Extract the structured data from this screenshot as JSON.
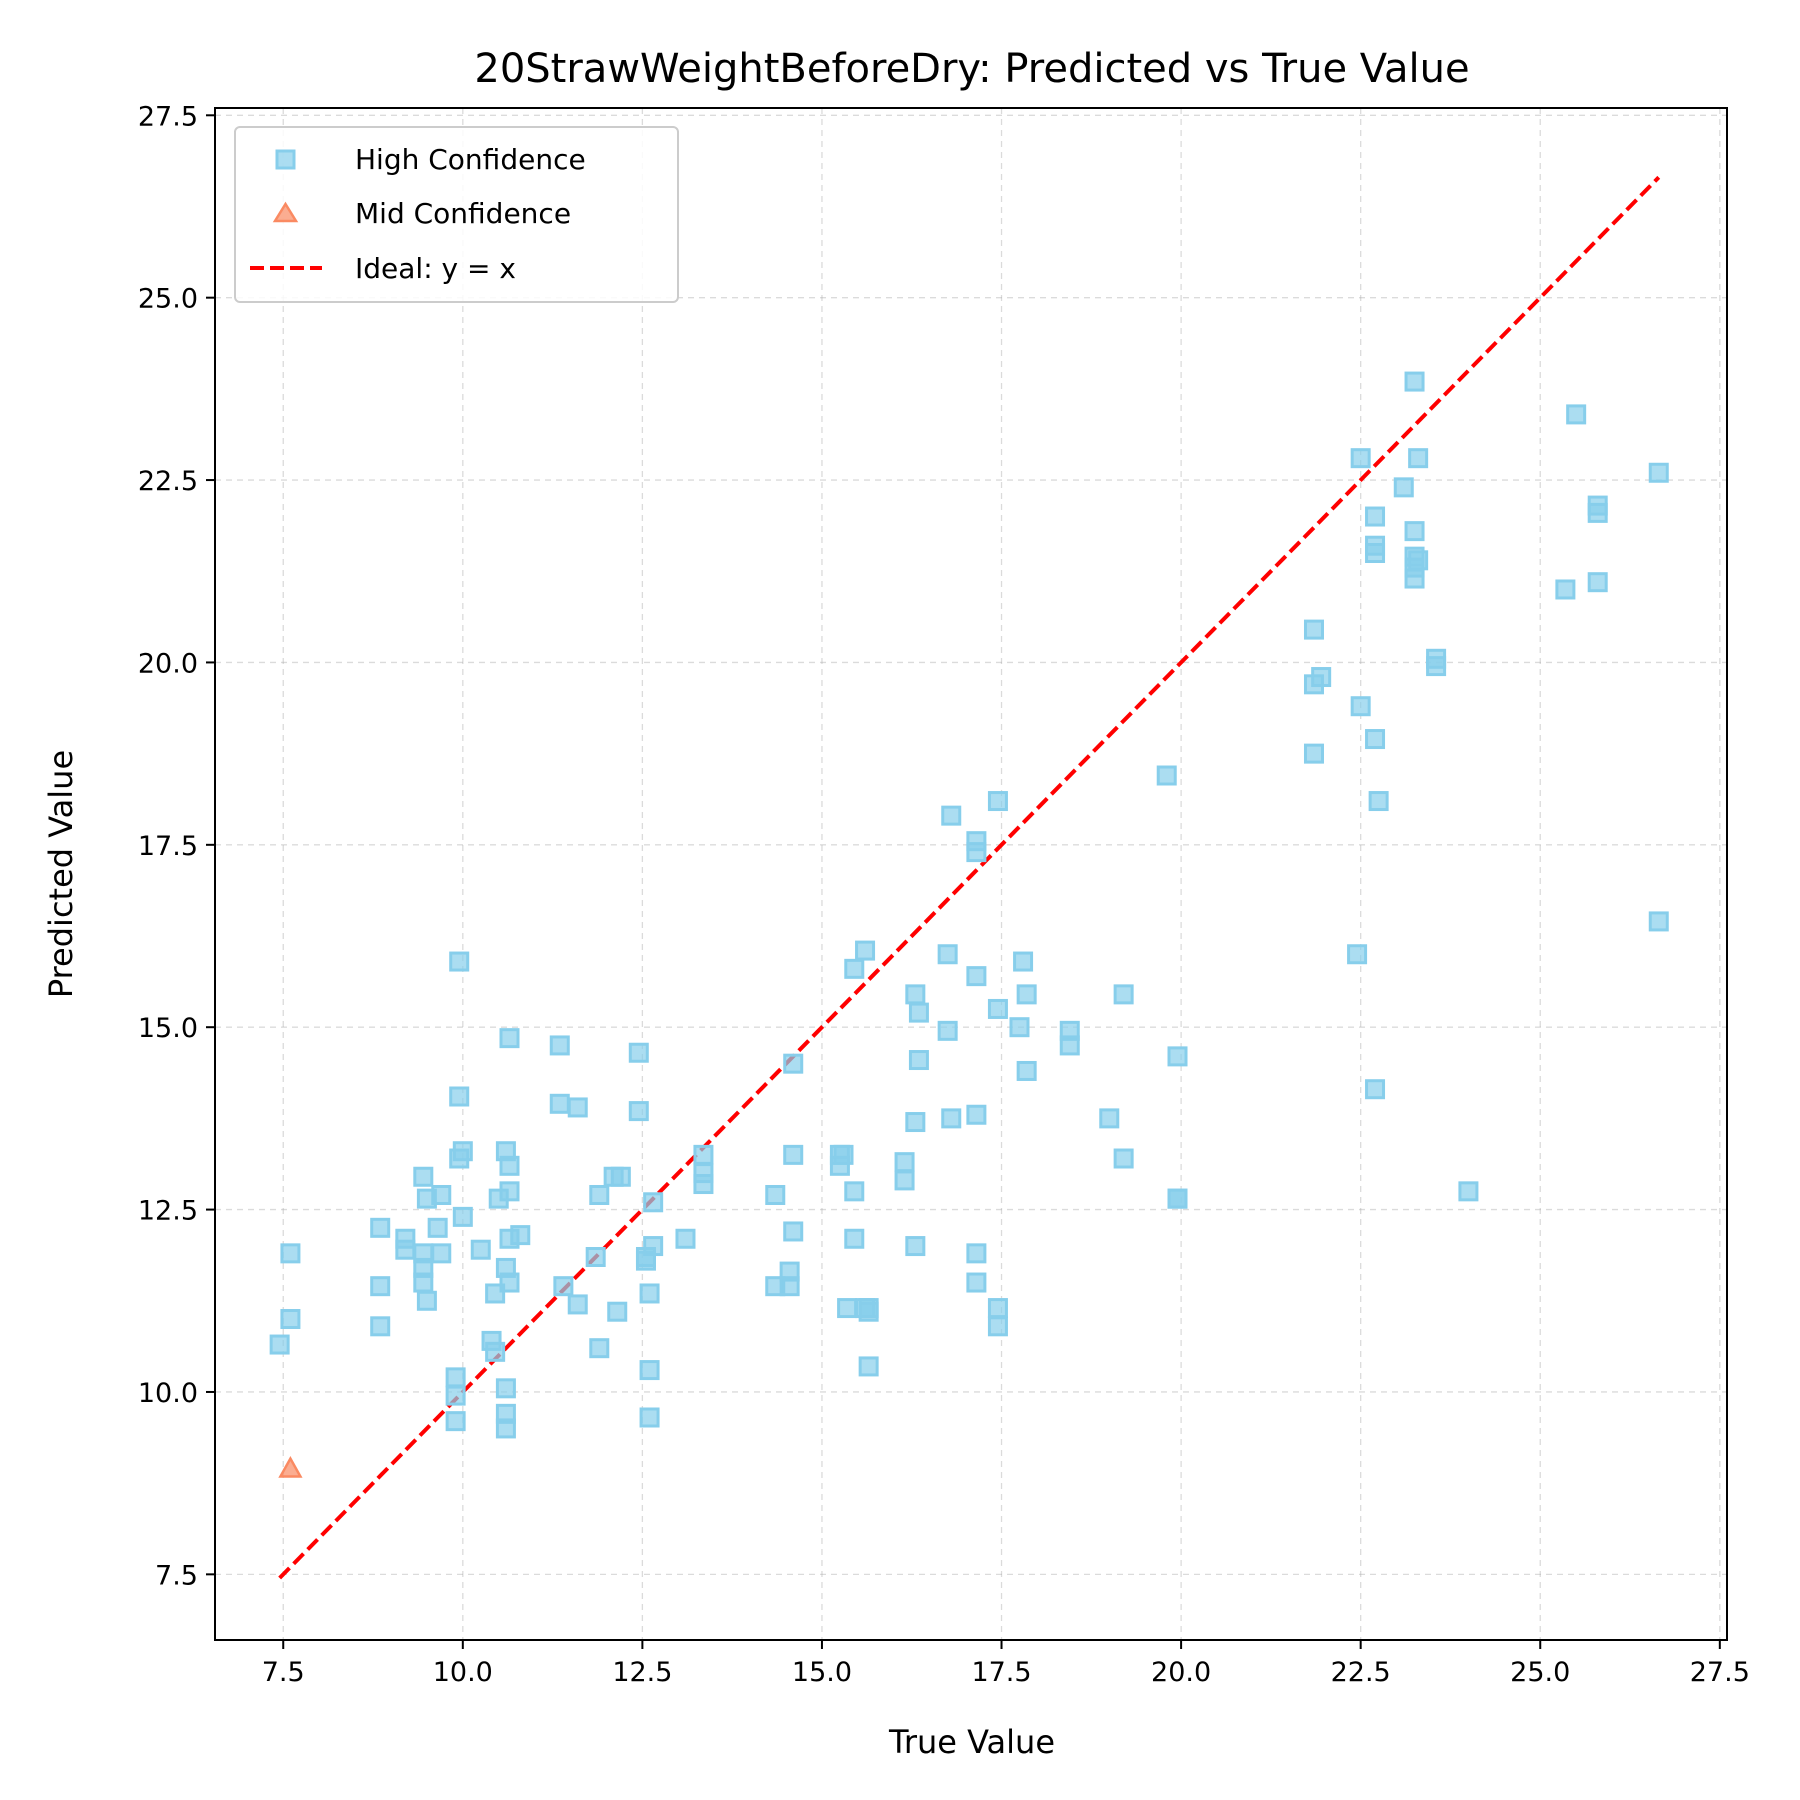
{
  "chart_data": {
    "type": "scatter",
    "title": "20StrawWeightBeforeDry: Predicted vs True Value",
    "xlabel": "True Value",
    "ylabel": "Predicted Value",
    "xlim": [
      6.55,
      27.6
    ],
    "ylim": [
      6.6,
      27.6
    ],
    "xticks": [
      7.5,
      10.0,
      12.5,
      15.0,
      17.5,
      20.0,
      22.5,
      25.0,
      27.5
    ],
    "yticks": [
      7.5,
      10.0,
      12.5,
      15.0,
      17.5,
      20.0,
      22.5,
      25.0,
      27.5
    ],
    "xtick_labels": [
      "7.5",
      "10.0",
      "12.5",
      "15.0",
      "17.5",
      "20.0",
      "22.5",
      "25.0",
      "27.5"
    ],
    "ytick_labels": [
      "7.5",
      "10.0",
      "12.5",
      "15.0",
      "17.5",
      "20.0",
      "22.5",
      "25.0",
      "27.5"
    ],
    "grid": true,
    "legend_position": "top-left",
    "series": [
      {
        "name": "High Confidence",
        "marker": "square",
        "color": "#87CEEB",
        "points": [
          [
            7.45,
            10.65
          ],
          [
            7.6,
            11.9
          ],
          [
            7.6,
            11.0
          ],
          [
            8.85,
            12.25
          ],
          [
            8.85,
            11.45
          ],
          [
            8.85,
            10.9
          ],
          [
            9.2,
            12.1
          ],
          [
            9.2,
            11.95
          ],
          [
            9.45,
            12.95
          ],
          [
            9.45,
            11.9
          ],
          [
            9.45,
            11.7
          ],
          [
            9.45,
            11.5
          ],
          [
            9.5,
            11.25
          ],
          [
            9.5,
            12.65
          ],
          [
            9.65,
            12.25
          ],
          [
            9.7,
            12.7
          ],
          [
            9.7,
            11.9
          ],
          [
            9.95,
            15.9
          ],
          [
            9.95,
            14.05
          ],
          [
            9.95,
            13.2
          ],
          [
            10.0,
            13.3
          ],
          [
            10.0,
            12.4
          ],
          [
            9.9,
            10.2
          ],
          [
            9.9,
            9.95
          ],
          [
            9.9,
            9.6
          ],
          [
            10.25,
            11.95
          ],
          [
            10.4,
            10.7
          ],
          [
            10.45,
            10.55
          ],
          [
            10.45,
            11.35
          ],
          [
            10.5,
            12.65
          ],
          [
            10.6,
            13.3
          ],
          [
            10.65,
            13.1
          ],
          [
            10.65,
            12.75
          ],
          [
            10.65,
            14.85
          ],
          [
            10.65,
            12.1
          ],
          [
            10.8,
            12.15
          ],
          [
            10.6,
            11.7
          ],
          [
            10.65,
            11.5
          ],
          [
            10.6,
            10.05
          ],
          [
            10.6,
            9.7
          ],
          [
            10.6,
            9.5
          ],
          [
            11.35,
            14.75
          ],
          [
            11.35,
            13.95
          ],
          [
            11.4,
            11.45
          ],
          [
            11.6,
            13.9
          ],
          [
            11.6,
            11.2
          ],
          [
            11.85,
            11.85
          ],
          [
            11.9,
            12.7
          ],
          [
            11.9,
            10.6
          ],
          [
            12.1,
            12.95
          ],
          [
            12.2,
            12.95
          ],
          [
            12.15,
            11.1
          ],
          [
            12.45,
            14.65
          ],
          [
            12.45,
            13.85
          ],
          [
            12.55,
            11.8
          ],
          [
            12.55,
            11.85
          ],
          [
            12.6,
            11.35
          ],
          [
            12.6,
            10.3
          ],
          [
            12.6,
            9.65
          ],
          [
            12.65,
            12.6
          ],
          [
            12.65,
            12.0
          ],
          [
            13.1,
            12.1
          ],
          [
            13.35,
            13.25
          ],
          [
            13.35,
            13.0
          ],
          [
            13.35,
            12.85
          ],
          [
            14.35,
            12.7
          ],
          [
            14.35,
            11.45
          ],
          [
            14.55,
            11.65
          ],
          [
            14.55,
            11.45
          ],
          [
            14.6,
            14.5
          ],
          [
            14.6,
            13.25
          ],
          [
            14.6,
            12.2
          ],
          [
            15.25,
            13.25
          ],
          [
            15.3,
            13.25
          ],
          [
            15.25,
            13.1
          ],
          [
            15.45,
            15.8
          ],
          [
            15.6,
            16.05
          ],
          [
            15.45,
            12.75
          ],
          [
            15.45,
            12.1
          ],
          [
            15.35,
            11.15
          ],
          [
            15.6,
            11.15
          ],
          [
            15.65,
            11.1
          ],
          [
            15.65,
            11.15
          ],
          [
            15.65,
            10.35
          ],
          [
            16.15,
            13.15
          ],
          [
            16.15,
            12.9
          ],
          [
            16.3,
            15.45
          ],
          [
            16.35,
            15.2
          ],
          [
            16.35,
            14.55
          ],
          [
            16.3,
            13.7
          ],
          [
            16.3,
            12.0
          ],
          [
            16.75,
            16.0
          ],
          [
            16.75,
            14.95
          ],
          [
            16.8,
            13.75
          ],
          [
            16.8,
            17.9
          ],
          [
            17.15,
            17.55
          ],
          [
            17.15,
            17.4
          ],
          [
            17.15,
            15.7
          ],
          [
            17.15,
            13.8
          ],
          [
            17.15,
            11.9
          ],
          [
            17.15,
            11.5
          ],
          [
            17.45,
            18.1
          ],
          [
            17.45,
            15.25
          ],
          [
            17.45,
            11.15
          ],
          [
            17.45,
            10.9
          ],
          [
            17.75,
            15.0
          ],
          [
            17.8,
            15.9
          ],
          [
            17.85,
            15.45
          ],
          [
            17.85,
            14.4
          ],
          [
            18.45,
            14.95
          ],
          [
            18.45,
            14.75
          ],
          [
            19.0,
            13.75
          ],
          [
            19.2,
            15.45
          ],
          [
            19.2,
            13.2
          ],
          [
            19.8,
            18.45
          ],
          [
            19.95,
            14.6
          ],
          [
            19.95,
            12.65
          ],
          [
            19.95,
            12.65
          ],
          [
            21.85,
            20.45
          ],
          [
            21.85,
            19.7
          ],
          [
            21.95,
            19.8
          ],
          [
            21.85,
            18.75
          ],
          [
            22.45,
            16.0
          ],
          [
            22.5,
            22.8
          ],
          [
            22.5,
            19.4
          ],
          [
            22.7,
            22.0
          ],
          [
            22.7,
            21.6
          ],
          [
            22.7,
            21.5
          ],
          [
            22.7,
            18.95
          ],
          [
            22.75,
            18.1
          ],
          [
            22.7,
            14.15
          ],
          [
            23.1,
            22.4
          ],
          [
            23.25,
            23.85
          ],
          [
            23.3,
            22.8
          ],
          [
            23.25,
            21.8
          ],
          [
            23.25,
            21.45
          ],
          [
            23.3,
            21.4
          ],
          [
            23.25,
            21.3
          ],
          [
            23.25,
            21.15
          ],
          [
            23.55,
            20.05
          ],
          [
            23.55,
            19.95
          ],
          [
            24.0,
            12.75
          ],
          [
            25.35,
            21.0
          ],
          [
            25.5,
            23.4
          ],
          [
            25.8,
            22.15
          ],
          [
            25.8,
            22.05
          ],
          [
            25.8,
            21.1
          ],
          [
            26.65,
            22.6
          ],
          [
            26.65,
            16.45
          ]
        ]
      },
      {
        "name": "Mid Confidence",
        "marker": "triangle",
        "color": "#FA8A62",
        "points": [
          [
            7.6,
            8.95
          ]
        ]
      }
    ],
    "ideal_line": {
      "name": "Ideal: y = x",
      "color": "#FF0000",
      "from": [
        7.45,
        7.45
      ],
      "to": [
        26.65,
        26.65
      ]
    }
  }
}
